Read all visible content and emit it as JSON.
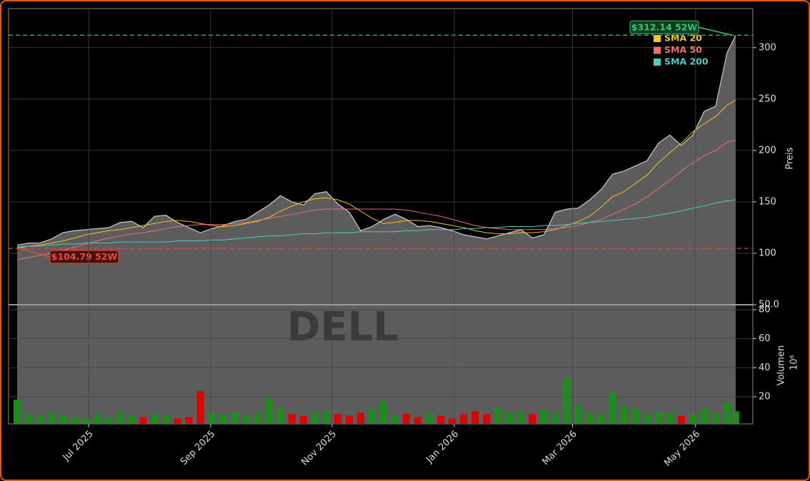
{
  "chart_data": [
    {
      "type": "line",
      "x": [
        3,
        7,
        11,
        15,
        19,
        23,
        27,
        31,
        35,
        39,
        43,
        47,
        51,
        55,
        59,
        63,
        67,
        71,
        75,
        79,
        83,
        87,
        91,
        95,
        99,
        103,
        107,
        111,
        115,
        119,
        123,
        127,
        131,
        135,
        139,
        143,
        147,
        151,
        155,
        159,
        163,
        167,
        171,
        175,
        179,
        183,
        187,
        191,
        195,
        199,
        203,
        207,
        211,
        215,
        219,
        223,
        227,
        231,
        235,
        239,
        243,
        247,
        251,
        254
      ],
      "values": [
        108,
        110,
        110,
        114,
        120,
        122,
        123,
        124,
        125,
        130,
        131,
        125,
        136,
        137,
        130,
        125,
        120,
        124,
        127,
        131,
        133,
        140,
        147,
        156,
        150,
        147,
        158,
        160,
        148,
        140,
        122,
        126,
        133,
        138,
        133,
        126,
        127,
        125,
        122,
        118,
        116,
        114,
        117,
        120,
        123,
        115,
        118,
        140,
        143,
        144,
        152,
        162,
        177,
        180,
        185,
        190,
        207,
        215,
        205,
        215,
        238,
        243,
        295,
        312
      ],
      "color": "#cccccc",
      "series": [
        {
          "name": "SMA 20",
          "color": "#f5c518",
          "values": [
            105,
            107,
            108,
            110,
            112,
            115,
            118,
            120,
            122,
            123,
            125,
            127,
            129,
            131,
            132,
            131,
            129,
            127,
            126,
            127,
            129,
            131,
            135,
            141,
            146,
            150,
            153,
            154,
            152,
            148,
            141,
            134,
            129,
            130,
            132,
            132,
            131,
            129,
            127,
            125,
            122,
            120,
            119,
            119,
            120,
            120,
            121,
            123,
            127,
            131,
            136,
            145,
            155,
            160,
            168,
            176,
            188,
            198,
            207,
            218,
            226,
            233,
            244,
            249
          ]
        },
        {
          "name": "SMA 50",
          "color": "#f07070",
          "values": [
            94,
            96,
            98,
            100,
            103,
            106,
            109,
            112,
            115,
            117,
            119,
            120,
            122,
            124,
            126,
            127,
            128,
            128,
            128,
            129,
            130,
            132,
            134,
            136,
            138,
            140,
            142,
            143,
            143,
            143,
            143,
            143,
            143,
            143,
            142,
            140,
            138,
            136,
            133,
            130,
            127,
            125,
            124,
            123,
            123,
            123,
            123,
            124,
            125,
            127,
            130,
            133,
            138,
            143,
            148,
            155,
            163,
            171,
            180,
            188,
            195,
            200,
            208,
            210
          ]
        },
        {
          "name": "SMA 200",
          "color": "#4ecdc4",
          "values": [
            106,
            107,
            107,
            108,
            109,
            109,
            110,
            110,
            110,
            111,
            111,
            111,
            111,
            111,
            112,
            112,
            112,
            113,
            113,
            114,
            115,
            116,
            117,
            117,
            118,
            119,
            119,
            120,
            120,
            120,
            121,
            121,
            121,
            121,
            122,
            122,
            123,
            123,
            123,
            124,
            124,
            125,
            125,
            126,
            126,
            126,
            127,
            127,
            128,
            129,
            130,
            131,
            132,
            133,
            134,
            135,
            137,
            139,
            141,
            144,
            146,
            149,
            151,
            152
          ]
        }
      ],
      "annotations": [
        {
          "value": 312.14,
          "label": "$312.14 52W",
          "color": "#2ecc71"
        },
        {
          "value": 104.79,
          "label": "$104.79 52W",
          "color": "#e74c3c"
        }
      ],
      "watermark": "DELL",
      "ylabel": "Preis",
      "xlim": [
        0,
        260
      ],
      "ylim": [
        50,
        338
      ],
      "yticks": [
        {
          "value": 50,
          "label": "50.0"
        },
        100,
        150,
        200,
        250,
        300
      ],
      "grid": true
    },
    {
      "type": "bar",
      "x": [
        3,
        7,
        11,
        15,
        19,
        23,
        27,
        31,
        35,
        39,
        43,
        47,
        51,
        55,
        59,
        63,
        67,
        71,
        75,
        79,
        83,
        87,
        91,
        95,
        99,
        103,
        107,
        111,
        115,
        119,
        123,
        127,
        131,
        135,
        139,
        143,
        147,
        151,
        155,
        159,
        163,
        167,
        171,
        175,
        179,
        183,
        187,
        191,
        195,
        199,
        203,
        207,
        211,
        215,
        219,
        223,
        227,
        231,
        235,
        239,
        243,
        247,
        251,
        254
      ],
      "values": [
        18,
        8,
        7,
        9,
        7,
        6,
        5,
        8,
        6,
        9,
        7,
        6,
        8,
        7,
        5,
        6,
        24,
        9,
        8,
        10,
        7,
        9,
        19,
        12,
        8,
        7,
        9,
        10,
        8,
        7,
        9,
        12,
        17,
        7,
        8,
        6,
        9,
        7,
        5,
        8,
        10,
        8,
        12,
        9,
        10,
        8,
        11,
        9,
        33,
        14,
        9,
        8,
        23,
        14,
        12,
        8,
        10,
        9,
        7,
        8,
        12,
        9,
        16,
        10
      ],
      "up_color": "#1e8c1e",
      "down_color": "#e00000",
      "ylabel": "Volumen",
      "offset_label": "10⁶",
      "xlim": [
        0,
        260
      ],
      "xticks": [
        {
          "value": 28,
          "label": "Jul 2025"
        },
        {
          "value": 70.6,
          "label": "Sep 2025"
        },
        {
          "value": 113,
          "label": "Nov 2025"
        },
        {
          "value": 155.7,
          "label": "Jan 2026"
        },
        {
          "value": 197,
          "label": "Mar 2026"
        },
        {
          "value": 240,
          "label": "May 2026"
        }
      ],
      "ylim": [
        1.3,
        83.4
      ],
      "yticks": [
        20,
        40,
        60,
        80
      ],
      "grid": true
    }
  ]
}
